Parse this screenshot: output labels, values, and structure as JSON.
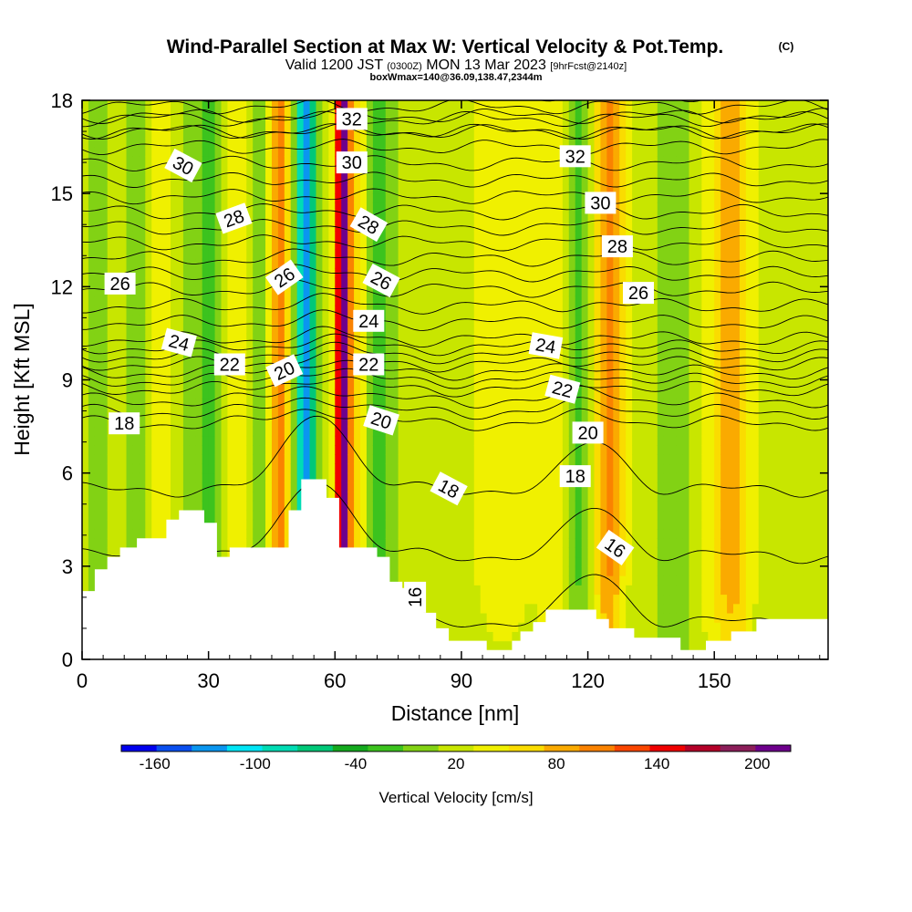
{
  "title": {
    "main": "Wind-Parallel Section at Max W: Vertical Velocity & Pot.Temp.",
    "copyright": "(C)",
    "valid_prefix": "Valid 1200 JST",
    "valid_utc": "(0300Z)",
    "valid_date": "MON 13 Mar 2023",
    "forecast": "[9hrFcst@2140z]",
    "boxline": "boxWmax=140@36.09,138.47,2344m"
  },
  "colors": {
    "background": "#ffffff",
    "terrain": "#ffffff",
    "contour": "#000000",
    "cbar": [
      "#0000ee",
      "#0a4ff0",
      "#0a96f0",
      "#00e5f5",
      "#00dcb4",
      "#00c878",
      "#14aa1e",
      "#3cc31e",
      "#82d214",
      "#c8e600",
      "#f0f000",
      "#fadc00",
      "#faaa00",
      "#fa8200",
      "#fa4600",
      "#f00000",
      "#b40028",
      "#8c1e5a",
      "#6e008c"
    ]
  },
  "chart_data": {
    "type": "heatmap",
    "xlabel": "Distance [nm]",
    "ylabel": "Height [Kft MSL]",
    "xlim": [
      0,
      177
    ],
    "ylim": [
      0,
      18
    ],
    "xticks": [
      "0",
      "30",
      "60",
      "90",
      "120",
      "150"
    ],
    "yticks": [
      "0",
      "3",
      "6",
      "9",
      "12",
      "15",
      "18"
    ],
    "colorbar": {
      "label": "Vertical Velocity [cm/s]",
      "ticks": [
        "-160",
        "-100",
        "-40",
        "20",
        "80",
        "140",
        "200"
      ],
      "levels": [
        -180,
        -160,
        -140,
        -120,
        -100,
        -80,
        -60,
        -40,
        -20,
        0,
        20,
        40,
        60,
        80,
        100,
        120,
        140,
        160,
        180,
        200,
        220
      ]
    },
    "updraft_columns": [
      {
        "x": 4,
        "w": 3.5,
        "v": -15
      },
      {
        "x": 13,
        "w": 2.5,
        "v": -25
      },
      {
        "x": 19,
        "w": 5,
        "v": 15
      },
      {
        "x": 26,
        "w": 3,
        "v": -20
      },
      {
        "x": 31,
        "w": 3,
        "v": -45
      },
      {
        "x": 36,
        "w": 4.5,
        "v": 25
      },
      {
        "x": 42,
        "w": 2.5,
        "v": -30
      },
      {
        "x": 47,
        "w": 2.5,
        "v": 80
      },
      {
        "x": 53,
        "w": 2.5,
        "v": -140
      },
      {
        "x": 62,
        "w": 1.8,
        "v": 190
      },
      {
        "x": 66,
        "w": 2.5,
        "v": 40
      },
      {
        "x": 70,
        "w": 4,
        "v": -45
      },
      {
        "x": 83,
        "w": 6,
        "v": -10
      },
      {
        "x": 100,
        "w": 9,
        "v": 20
      },
      {
        "x": 112,
        "w": 3.5,
        "v": 20
      },
      {
        "x": 118,
        "w": 3,
        "v": -35
      },
      {
        "x": 125,
        "w": 3.5,
        "v": 75
      },
      {
        "x": 141,
        "w": 4,
        "v": -25
      },
      {
        "x": 147,
        "w": 3.5,
        "v": 10
      },
      {
        "x": 154,
        "w": 4.5,
        "v": 65
      },
      {
        "x": 167,
        "w": 5,
        "v": 10
      }
    ],
    "terrain": [
      [
        0,
        2.2
      ],
      [
        3,
        2.2
      ],
      [
        3,
        2.9
      ],
      [
        6,
        2.9
      ],
      [
        6,
        3.3
      ],
      [
        9,
        3.3
      ],
      [
        9,
        3.6
      ],
      [
        13,
        3.6
      ],
      [
        13,
        3.9
      ],
      [
        20,
        3.9
      ],
      [
        20,
        4.5
      ],
      [
        23,
        4.5
      ],
      [
        23,
        4.8
      ],
      [
        29,
        4.8
      ],
      [
        29,
        4.4
      ],
      [
        32,
        4.4
      ],
      [
        32,
        3.3
      ],
      [
        35,
        3.3
      ],
      [
        35,
        3.6
      ],
      [
        49,
        3.6
      ],
      [
        49,
        4.8
      ],
      [
        52,
        4.8
      ],
      [
        52,
        5.8
      ],
      [
        58,
        5.8
      ],
      [
        58,
        5.2
      ],
      [
        61,
        5.2
      ],
      [
        61,
        3.6
      ],
      [
        70,
        3.6
      ],
      [
        70,
        3.3
      ],
      [
        73,
        3.3
      ],
      [
        73,
        2.5
      ],
      [
        76,
        2.5
      ],
      [
        76,
        2.3
      ],
      [
        81,
        2.3
      ],
      [
        81,
        1.5
      ],
      [
        84,
        1.5
      ],
      [
        84,
        1.0
      ],
      [
        87,
        1.0
      ],
      [
        87,
        0.6
      ],
      [
        93,
        0.6
      ],
      [
        93,
        0.6
      ],
      [
        96,
        0.6
      ],
      [
        96,
        0.3
      ],
      [
        102,
        0.3
      ],
      [
        102,
        0.6
      ],
      [
        104,
        0.6
      ],
      [
        104,
        0.9
      ],
      [
        107,
        0.9
      ],
      [
        107,
        1.2
      ],
      [
        110,
        1.2
      ],
      [
        110,
        1.6
      ],
      [
        122,
        1.6
      ],
      [
        122,
        1.3
      ],
      [
        125,
        1.3
      ],
      [
        125,
        1.0
      ],
      [
        131,
        1.0
      ],
      [
        131,
        0.7
      ],
      [
        142,
        0.7
      ],
      [
        142,
        0.3
      ],
      [
        148,
        0.3
      ],
      [
        148,
        0.6
      ],
      [
        154,
        0.6
      ],
      [
        154,
        0.9
      ],
      [
        160,
        0.9
      ],
      [
        160,
        1.3
      ],
      [
        177,
        1.3
      ]
    ],
    "theta_contours": [
      {
        "value": 16,
        "label": "16",
        "base": 1.2,
        "bump": 2.6,
        "labels": [
          {
            "x": 79,
            "h": 2.0,
            "rot": -90
          },
          {
            "x": 126.5,
            "h": 3.6,
            "rot": 35
          }
        ]
      },
      {
        "value": 18,
        "label": "18",
        "base": 7.6,
        "bump": 0.5,
        "labels": [
          {
            "x": 10,
            "h": 7.6,
            "rot": 0
          },
          {
            "x": 87,
            "h": 5.5,
            "rot": 28
          },
          {
            "x": 117,
            "h": 5.9,
            "rot": 0
          }
        ]
      },
      {
        "value": 20,
        "label": "20",
        "base": 8.7,
        "bump": 0.4,
        "labels": [
          {
            "x": 48,
            "h": 9.3,
            "rot": -25
          },
          {
            "x": 71,
            "h": 7.7,
            "rot": 18
          },
          {
            "x": 120,
            "h": 7.3,
            "rot": 0
          }
        ]
      },
      {
        "value": 22,
        "label": "22",
        "base": 9.5,
        "bump": 0.3,
        "labels": [
          {
            "x": 35,
            "h": 9.5,
            "rot": 0
          },
          {
            "x": 68,
            "h": 9.5,
            "rot": 0
          },
          {
            "x": 114,
            "h": 8.7,
            "rot": 15
          }
        ]
      },
      {
        "value": 24,
        "label": "24",
        "base": 10.3,
        "bump": 0.2,
        "labels": [
          {
            "x": 23,
            "h": 10.2,
            "rot": 15
          },
          {
            "x": 68,
            "h": 10.9,
            "rot": 0
          },
          {
            "x": 110,
            "h": 10.1,
            "rot": 10
          }
        ]
      },
      {
        "value": 26,
        "label": "26",
        "base": 11.9,
        "bump": 0.1,
        "labels": [
          {
            "x": 9,
            "h": 12.1,
            "rot": 0
          },
          {
            "x": 48,
            "h": 12.3,
            "rot": -35
          },
          {
            "x": 71,
            "h": 12.2,
            "rot": 28
          },
          {
            "x": 132,
            "h": 11.8,
            "rot": 0
          }
        ]
      },
      {
        "value": 28,
        "label": "28",
        "base": 13.4,
        "bump": 0.1,
        "labels": [
          {
            "x": 36,
            "h": 14.2,
            "rot": -20
          },
          {
            "x": 68,
            "h": 14.0,
            "rot": 30
          },
          {
            "x": 127,
            "h": 13.3,
            "rot": 0
          }
        ]
      },
      {
        "value": 30,
        "label": "30",
        "base": 14.9,
        "bump": 0.05,
        "labels": [
          {
            "x": 24,
            "h": 15.9,
            "rot": 28
          },
          {
            "x": 64,
            "h": 16.0,
            "rot": 0
          },
          {
            "x": 123,
            "h": 14.7,
            "rot": 0
          }
        ]
      },
      {
        "value": 32,
        "label": "32",
        "base": 16.5,
        "bump": 0.0,
        "labels": [
          {
            "x": 64,
            "h": 17.4,
            "rot": 0
          },
          {
            "x": 117,
            "h": 16.2,
            "rot": 0
          }
        ]
      }
    ]
  }
}
